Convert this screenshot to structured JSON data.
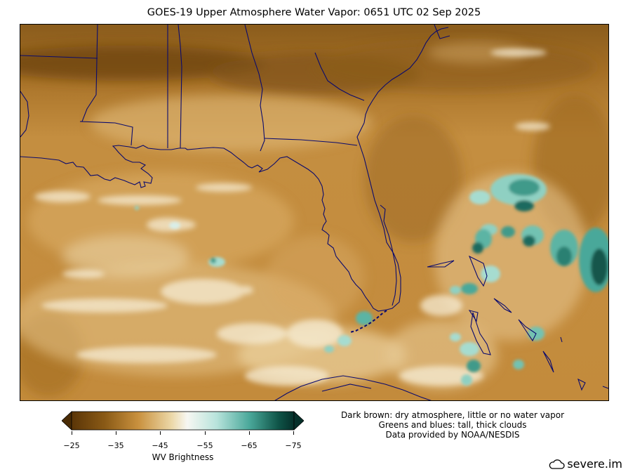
{
  "title": "GOES-19 Upper Atmosphere Water Vapor: 0651 UTC 02 Sep 2025",
  "colorbar": {
    "label": "WV Brightness",
    "ticks": [
      "−25",
      "−35",
      "−45",
      "−55",
      "−65",
      "−75"
    ],
    "colors": [
      "#4a2c05",
      "#8a5a16",
      "#c9913e",
      "#ecd8a8",
      "#f7f7f2",
      "#b9e4dc",
      "#4aa89a",
      "#0f5448",
      "#05302a"
    ]
  },
  "legend": {
    "line1": "Dark brown: dry atmosphere, little or no water vapor",
    "line2": "Greens and blues: tall, thick clouds",
    "line3": "Data provided by NOAA/NESDIS"
  },
  "brand": {
    "text": "severe.im",
    "icon": "cloud-icon"
  },
  "map": {
    "region": "Gulf of Mexico, Florida, southeastern US",
    "coastline_color": "#0a0a6e"
  }
}
